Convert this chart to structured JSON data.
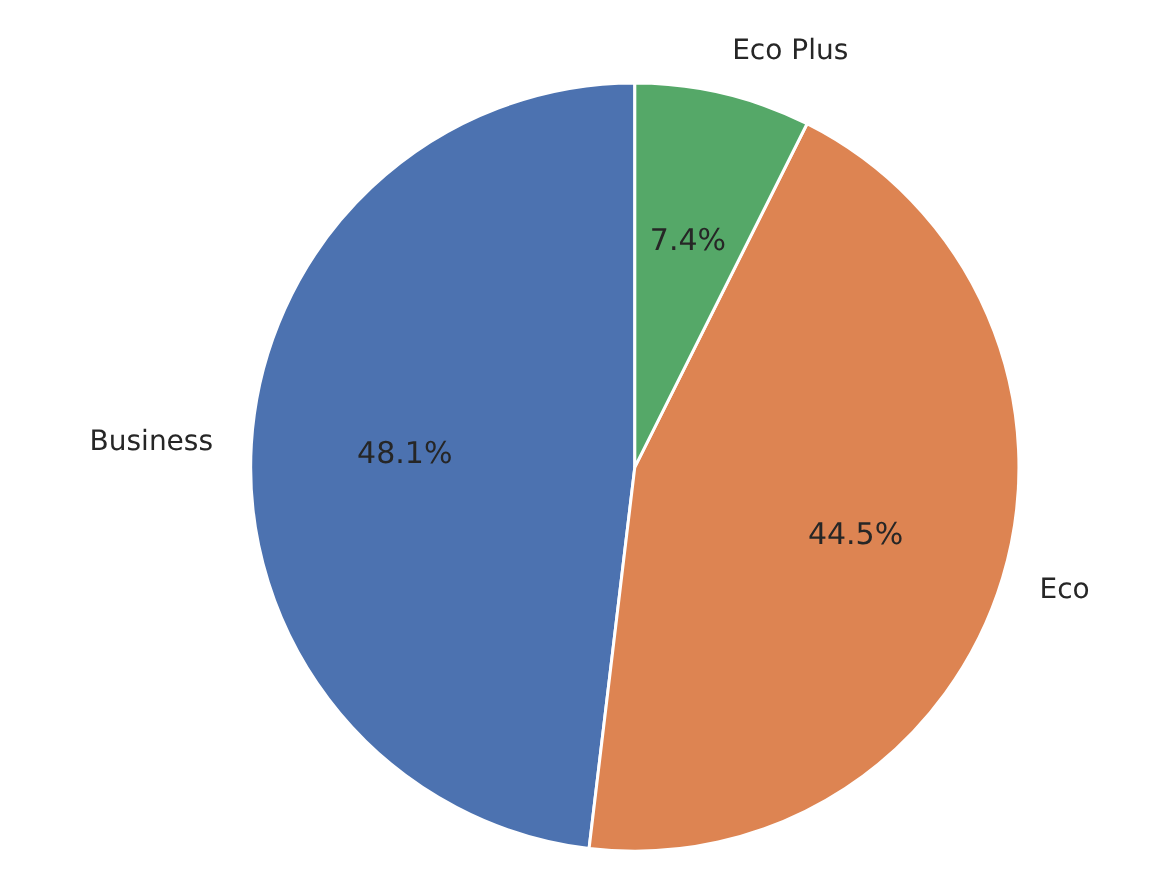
{
  "chart_data": {
    "type": "pie",
    "categories": [
      "Business",
      "Eco",
      "Eco Plus"
    ],
    "values": [
      48.1,
      44.5,
      7.4
    ],
    "colors": [
      "#4c72b0",
      "#dd8452",
      "#55a868"
    ],
    "value_labels": [
      "48.1%",
      "44.5%",
      "7.4%"
    ]
  }
}
